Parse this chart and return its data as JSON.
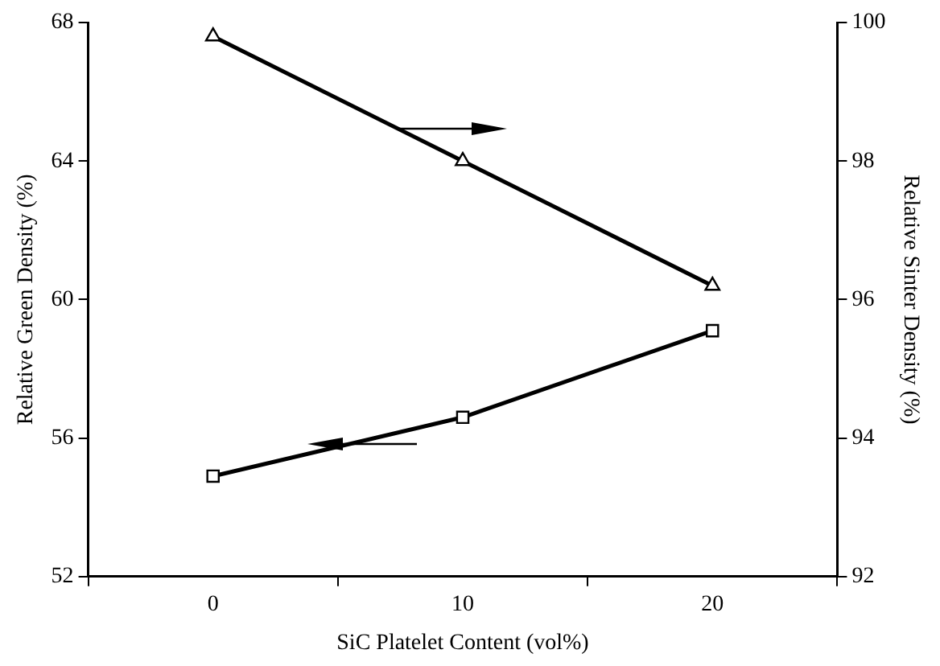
{
  "chart_data": {
    "type": "line",
    "xlabel": "SiC Platelet Content (vol%)",
    "ylabel": "Relative Green Density (%)",
    "y2label": "Relative Sinter Density (%)",
    "categories": [
      "0",
      "10",
      "20"
    ],
    "ylim": [
      52,
      68
    ],
    "yticks": [
      52,
      56,
      60,
      64,
      68
    ],
    "y2lim": [
      92,
      100
    ],
    "y2ticks": [
      92,
      94,
      96,
      98,
      100
    ],
    "grid": false,
    "legend": false,
    "series": [
      {
        "color": "#000000",
        "marker": "square",
        "values": [
          54.9,
          56.6,
          59.1
        ]
      },
      {
        "color": "#000000",
        "marker": "triangle",
        "axis": "y2",
        "values": [
          99.8,
          98.0,
          96.2
        ]
      }
    ]
  }
}
